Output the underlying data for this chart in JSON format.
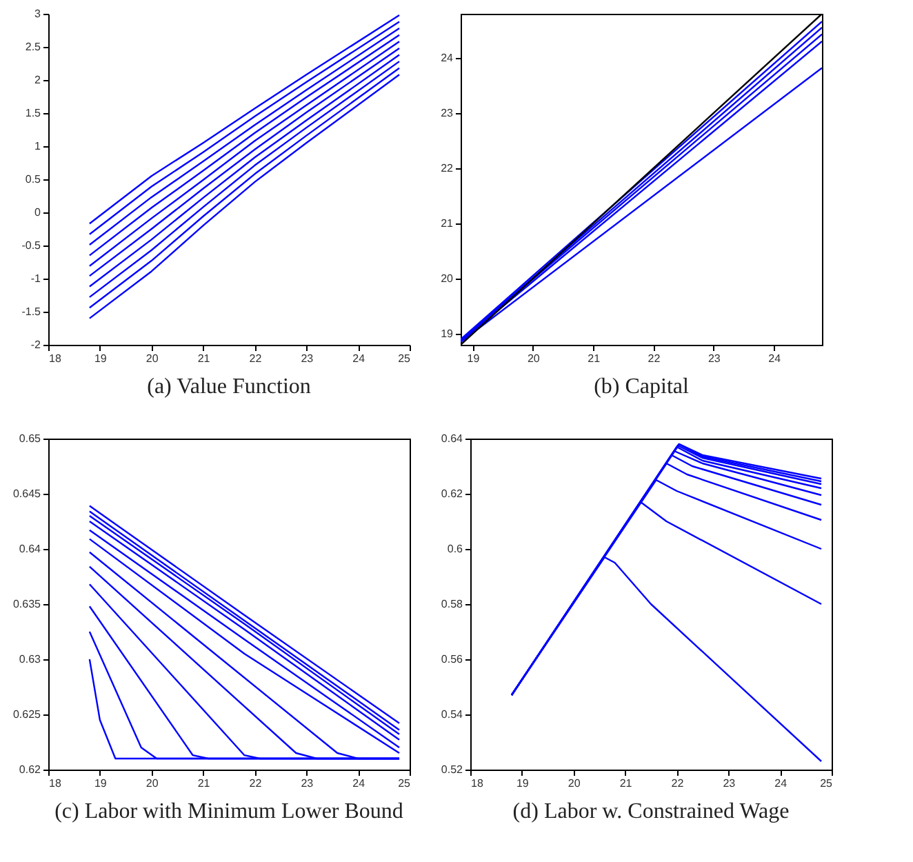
{
  "chart_data": [
    {
      "type": "line",
      "title": "(a) Value Function",
      "x": [
        18.8,
        20,
        21,
        22,
        23,
        24.8
      ],
      "xlim": [
        18,
        25
      ],
      "xticks": [
        18,
        19,
        20,
        21,
        22,
        23,
        24,
        25
      ],
      "ylim": [
        -2,
        3
      ],
      "yticks": [
        -2,
        -1.5,
        -1,
        -0.5,
        0,
        0.5,
        1,
        1.5,
        2,
        2.5,
        3
      ],
      "series": [
        {
          "color": "#0000ff",
          "values": [
            -0.17,
            0.55,
            1.05,
            1.57,
            2.08,
            2.98
          ]
        },
        {
          "color": "#0000ff",
          "values": [
            -0.33,
            0.39,
            0.91,
            1.45,
            1.97,
            2.88
          ]
        },
        {
          "color": "#0000ff",
          "values": [
            -0.49,
            0.23,
            0.77,
            1.32,
            1.85,
            2.78
          ]
        },
        {
          "color": "#0000ff",
          "values": [
            -0.65,
            0.07,
            0.63,
            1.2,
            1.74,
            2.68
          ]
        },
        {
          "color": "#0000ff",
          "values": [
            -0.81,
            -0.09,
            0.49,
            1.08,
            1.62,
            2.58
          ]
        },
        {
          "color": "#0000ff",
          "values": [
            -0.96,
            -0.25,
            0.36,
            0.95,
            1.51,
            2.48
          ]
        },
        {
          "color": "#0000ff",
          "values": [
            -1.12,
            -0.41,
            0.22,
            0.83,
            1.39,
            2.38
          ]
        },
        {
          "color": "#0000ff",
          "values": [
            -1.28,
            -0.57,
            0.08,
            0.71,
            1.28,
            2.28
          ]
        },
        {
          "color": "#0000ff",
          "values": [
            -1.44,
            -0.73,
            -0.06,
            0.58,
            1.16,
            2.18
          ]
        },
        {
          "color": "#0000ff",
          "values": [
            -1.6,
            -0.89,
            -0.2,
            0.46,
            1.05,
            2.08
          ]
        }
      ]
    },
    {
      "type": "line",
      "title": "(b) Capital",
      "x": [
        18.8,
        24.8
      ],
      "xlim": [
        18.8,
        24.8
      ],
      "xticks": [
        19,
        20,
        21,
        22,
        23,
        24
      ],
      "ylim": [
        18.8,
        24.8
      ],
      "yticks": [
        19,
        20,
        21,
        22,
        23,
        24
      ],
      "series": [
        {
          "color": "#0000ff",
          "values": [
            18.9,
            24.66
          ]
        },
        {
          "color": "#0000ff",
          "values": [
            18.88,
            24.55
          ]
        },
        {
          "color": "#0000ff",
          "values": [
            18.88,
            24.43
          ]
        },
        {
          "color": "#0000ff",
          "values": [
            18.86,
            24.3
          ]
        },
        {
          "color": "#0000ff",
          "values": [
            18.85,
            23.82
          ]
        },
        {
          "color": "#000000",
          "values": [
            18.8,
            24.8
          ]
        }
      ]
    },
    {
      "type": "line",
      "title": "(c) Labor with Minimum Lower Bound",
      "xlim": [
        18,
        25
      ],
      "xticks": [
        18,
        19,
        20,
        21,
        22,
        23,
        24,
        25
      ],
      "ylim": [
        0.62,
        0.65
      ],
      "yticks": [
        0.62,
        0.625,
        0.63,
        0.635,
        0.64,
        0.645,
        0.65
      ],
      "series": [
        {
          "color": "#0000ff",
          "x": [
            18.8,
            19.0,
            19.3,
            24.8
          ],
          "values": [
            0.63,
            0.6245,
            0.621,
            0.621
          ]
        },
        {
          "color": "#0000ff",
          "x": [
            18.8,
            19.8,
            20.1,
            24.8
          ],
          "values": [
            0.6325,
            0.622,
            0.621,
            0.621
          ]
        },
        {
          "color": "#0000ff",
          "x": [
            18.8,
            20.8,
            21.1,
            24.8
          ],
          "values": [
            0.6348,
            0.6213,
            0.621,
            0.621
          ]
        },
        {
          "color": "#0000ff",
          "x": [
            18.8,
            21.8,
            22.1,
            24.8
          ],
          "values": [
            0.6368,
            0.6213,
            0.621,
            0.621
          ]
        },
        {
          "color": "#0000ff",
          "x": [
            18.8,
            22.8,
            23.2,
            24.8
          ],
          "values": [
            0.6384,
            0.6215,
            0.621,
            0.621
          ]
        },
        {
          "color": "#0000ff",
          "x": [
            18.8,
            23.6,
            24.0,
            24.8
          ],
          "values": [
            0.6397,
            0.6215,
            0.621,
            0.621
          ]
        },
        {
          "color": "#0000ff",
          "x": [
            18.8,
            21.8,
            24.8
          ],
          "values": [
            0.6409,
            0.6305,
            0.6215
          ]
        },
        {
          "color": "#0000ff",
          "x": [
            18.8,
            21.8,
            24.8
          ],
          "values": [
            0.6417,
            0.6318,
            0.622
          ]
        },
        {
          "color": "#0000ff",
          "x": [
            18.8,
            21.8,
            24.8
          ],
          "values": [
            0.6425,
            0.6327,
            0.6227
          ]
        },
        {
          "color": "#0000ff",
          "x": [
            18.8,
            21.8,
            24.8
          ],
          "values": [
            0.643,
            0.6332,
            0.6232
          ]
        },
        {
          "color": "#0000ff",
          "x": [
            18.8,
            21.8,
            24.8
          ],
          "values": [
            0.6434,
            0.6335,
            0.6236
          ]
        },
        {
          "color": "#0000ff",
          "x": [
            18.8,
            21.8,
            24.8
          ],
          "values": [
            0.6439,
            0.634,
            0.6242
          ]
        }
      ]
    },
    {
      "type": "line",
      "title": "(d) Labor w. Constrained Wage",
      "xlim": [
        18,
        25
      ],
      "xticks": [
        18,
        19,
        20,
        21,
        22,
        23,
        24,
        25
      ],
      "ylim": [
        0.52,
        0.64
      ],
      "yticks": [
        0.52,
        0.54,
        0.56,
        0.58,
        0.6,
        0.62,
        0.64
      ],
      "series": [
        {
          "color": "#0000ff",
          "x": [
            18.8,
            20.6,
            20.8,
            21.5,
            24.8
          ],
          "values": [
            0.547,
            0.597,
            0.595,
            0.58,
            0.523
          ]
        },
        {
          "color": "#0000ff",
          "x": [
            18.8,
            21.3,
            21.8,
            24.8
          ],
          "values": [
            0.547,
            0.617,
            0.61,
            0.58
          ]
        },
        {
          "color": "#0000ff",
          "x": [
            18.8,
            21.6,
            22.0,
            24.8
          ],
          "values": [
            0.547,
            0.625,
            0.621,
            0.6
          ]
        },
        {
          "color": "#0000ff",
          "x": [
            18.8,
            21.8,
            22.2,
            24.8
          ],
          "values": [
            0.547,
            0.631,
            0.627,
            0.6105
          ]
        },
        {
          "color": "#0000ff",
          "x": [
            18.8,
            21.9,
            22.3,
            24.8
          ],
          "values": [
            0.547,
            0.634,
            0.63,
            0.616
          ]
        },
        {
          "color": "#0000ff",
          "x": [
            18.8,
            21.95,
            22.5,
            24.8
          ],
          "values": [
            0.547,
            0.6355,
            0.631,
            0.6195
          ]
        },
        {
          "color": "#0000ff",
          "x": [
            18.8,
            22.0,
            22.5,
            24.8
          ],
          "values": [
            0.547,
            0.637,
            0.632,
            0.622
          ]
        },
        {
          "color": "#0000ff",
          "x": [
            18.8,
            22.02,
            22.5,
            24.8
          ],
          "values": [
            0.547,
            0.6375,
            0.633,
            0.6235
          ]
        },
        {
          "color": "#0000ff",
          "x": [
            18.8,
            22.04,
            22.5,
            24.8
          ],
          "values": [
            0.547,
            0.638,
            0.6335,
            0.6245
          ]
        },
        {
          "color": "#0000ff",
          "x": [
            18.8,
            22.05,
            22.5,
            24.8
          ],
          "values": [
            0.547,
            0.638,
            0.634,
            0.6255
          ]
        }
      ]
    }
  ]
}
